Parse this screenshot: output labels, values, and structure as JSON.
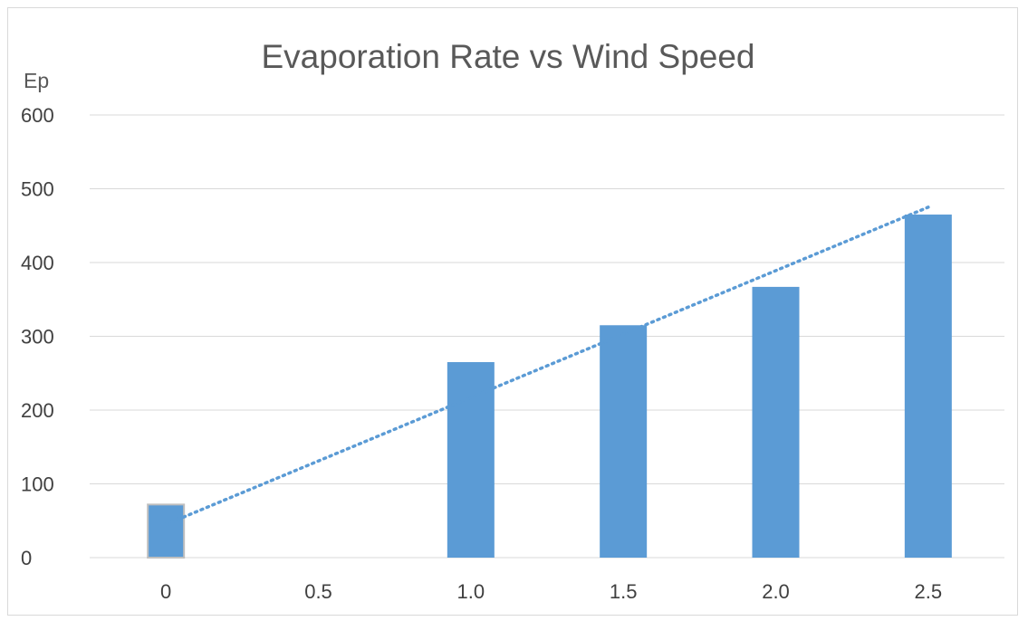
{
  "chart_data": {
    "type": "bar",
    "title": "Evaporation Rate vs Wind Speed",
    "ylabel": "Ep",
    "xlabel": "",
    "categories": [
      "0",
      "0.5",
      "1.0",
      "1.5",
      "2.0",
      "2.5"
    ],
    "values": [
      72,
      null,
      265,
      315,
      367,
      465
    ],
    "ylim": [
      0,
      600
    ],
    "yticks": [
      0,
      100,
      200,
      300,
      400,
      500,
      600
    ],
    "grid": true,
    "legend": "none",
    "trendline": {
      "type": "linear",
      "style": "dotted",
      "start": 45,
      "end": 475
    },
    "colors": {
      "bar": "#5b9bd5",
      "trendline": "#5b9bd5",
      "grid": "#d9d9d9",
      "text": "#404040",
      "title": "#595959"
    }
  }
}
